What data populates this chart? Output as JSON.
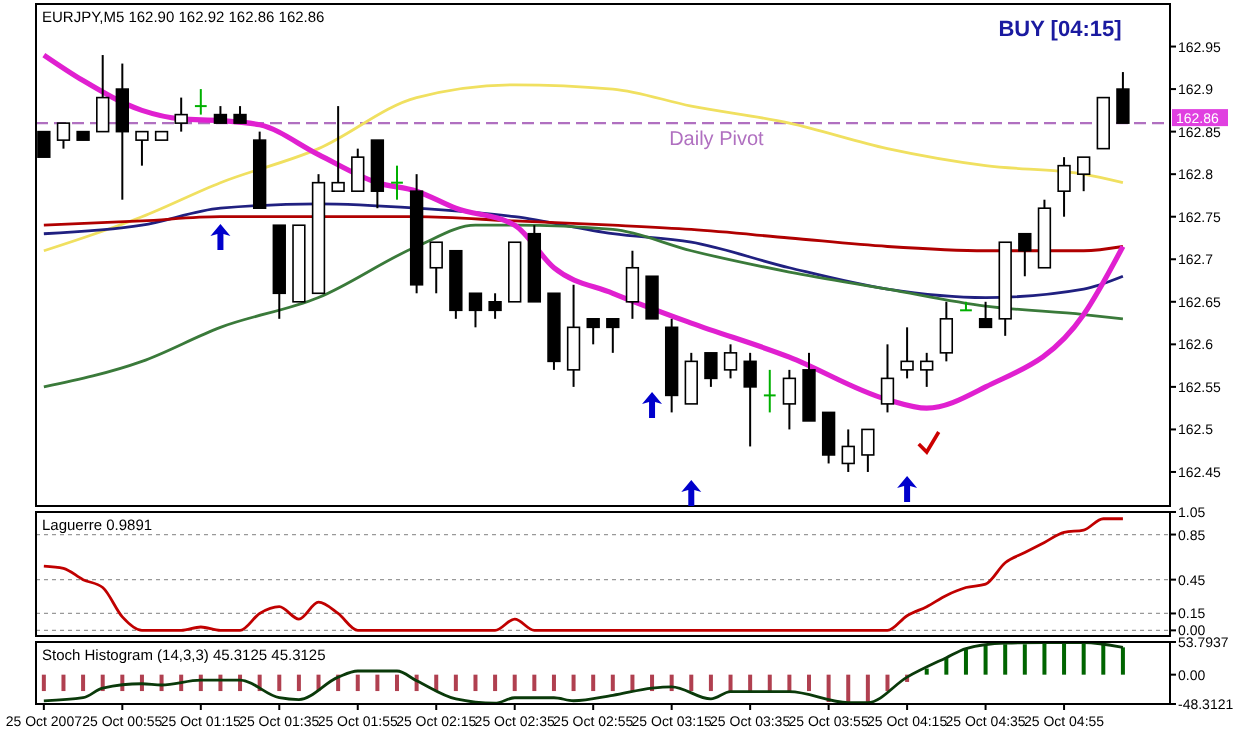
{
  "chart_data": [
    {
      "type": "candlestick",
      "title": "EURJPY,M5  162.90 162.92 162.86 162.86",
      "x": [
        "2007-10-25T00:35",
        "2007-10-25T00:40",
        "2007-10-25T00:45",
        "2007-10-25T00:50",
        "2007-10-25T00:55",
        "2007-10-25T01:00",
        "2007-10-25T01:05",
        "2007-10-25T01:10",
        "2007-10-25T01:15",
        "2007-10-25T01:20",
        "2007-10-25T01:25",
        "2007-10-25T01:30",
        "2007-10-25T01:35",
        "2007-10-25T01:40",
        "2007-10-25T01:45",
        "2007-10-25T01:50",
        "2007-10-25T01:55",
        "2007-10-25T02:00",
        "2007-10-25T02:05",
        "2007-10-25T02:10",
        "2007-10-25T02:15",
        "2007-10-25T02:20",
        "2007-10-25T02:25",
        "2007-10-25T02:30",
        "2007-10-25T02:35",
        "2007-10-25T02:40",
        "2007-10-25T02:45",
        "2007-10-25T02:50",
        "2007-10-25T02:55",
        "2007-10-25T03:00",
        "2007-10-25T03:05",
        "2007-10-25T03:10",
        "2007-10-25T03:15",
        "2007-10-25T03:20",
        "2007-10-25T03:25",
        "2007-10-25T03:30",
        "2007-10-25T03:35",
        "2007-10-25T03:40",
        "2007-10-25T03:45",
        "2007-10-25T03:50",
        "2007-10-25T03:55",
        "2007-10-25T04:00",
        "2007-10-25T04:05",
        "2007-10-25T04:10",
        "2007-10-25T04:15",
        "2007-10-25T04:20",
        "2007-10-25T04:25",
        "2007-10-25T04:30",
        "2007-10-25T04:35",
        "2007-10-25T04:40",
        "2007-10-25T04:45",
        "2007-10-25T04:50",
        "2007-10-25T04:55",
        "2007-10-25T05:00",
        "2007-10-25T05:05",
        "2007-10-25T05:10"
      ],
      "ohlc": [
        [
          162.85,
          162.85,
          162.82,
          162.82
        ],
        [
          162.84,
          162.86,
          162.83,
          162.86
        ],
        [
          162.85,
          162.85,
          162.84,
          162.84
        ],
        [
          162.85,
          162.94,
          162.85,
          162.89
        ],
        [
          162.9,
          162.93,
          162.77,
          162.85
        ],
        [
          162.84,
          162.85,
          162.81,
          162.85
        ],
        [
          162.84,
          162.85,
          162.84,
          162.85
        ],
        [
          162.86,
          162.89,
          162.85,
          162.87
        ],
        [
          162.88,
          162.9,
          162.87,
          162.88
        ],
        [
          162.87,
          162.88,
          162.86,
          162.86
        ],
        [
          162.87,
          162.88,
          162.86,
          162.86
        ],
        [
          162.84,
          162.85,
          162.76,
          162.76
        ],
        [
          162.74,
          162.74,
          162.63,
          162.66
        ],
        [
          162.65,
          162.74,
          162.65,
          162.74
        ],
        [
          162.66,
          162.8,
          162.66,
          162.79
        ],
        [
          162.78,
          162.88,
          162.78,
          162.79
        ],
        [
          162.78,
          162.83,
          162.78,
          162.82
        ],
        [
          162.84,
          162.84,
          162.76,
          162.78
        ],
        [
          162.79,
          162.81,
          162.77,
          162.79
        ],
        [
          162.78,
          162.8,
          162.66,
          162.67
        ],
        [
          162.69,
          162.72,
          162.66,
          162.72
        ],
        [
          162.71,
          162.71,
          162.63,
          162.64
        ],
        [
          162.66,
          162.66,
          162.62,
          162.64
        ],
        [
          162.65,
          162.66,
          162.63,
          162.64
        ],
        [
          162.65,
          162.72,
          162.65,
          162.72
        ],
        [
          162.73,
          162.74,
          162.65,
          162.65
        ],
        [
          162.66,
          162.66,
          162.57,
          162.58
        ],
        [
          162.57,
          162.67,
          162.55,
          162.62
        ],
        [
          162.63,
          162.63,
          162.6,
          162.62
        ],
        [
          162.63,
          162.63,
          162.59,
          162.62
        ],
        [
          162.65,
          162.71,
          162.63,
          162.69
        ],
        [
          162.68,
          162.68,
          162.63,
          162.63
        ],
        [
          162.62,
          162.63,
          162.52,
          162.54
        ],
        [
          162.53,
          162.59,
          162.53,
          162.58
        ],
        [
          162.59,
          162.59,
          162.55,
          162.56
        ],
        [
          162.57,
          162.6,
          162.56,
          162.59
        ],
        [
          162.58,
          162.59,
          162.48,
          162.55
        ],
        [
          162.54,
          162.57,
          162.52,
          162.54
        ],
        [
          162.53,
          162.57,
          162.5,
          162.56
        ],
        [
          162.57,
          162.59,
          162.51,
          162.51
        ],
        [
          162.52,
          162.52,
          162.46,
          162.47
        ],
        [
          162.46,
          162.5,
          162.45,
          162.48
        ],
        [
          162.47,
          162.5,
          162.45,
          162.5
        ],
        [
          162.53,
          162.6,
          162.52,
          162.56
        ],
        [
          162.57,
          162.62,
          162.56,
          162.58
        ],
        [
          162.57,
          162.59,
          162.55,
          162.58
        ],
        [
          162.59,
          162.65,
          162.58,
          162.63
        ],
        [
          162.64,
          162.65,
          162.64,
          162.64
        ],
        [
          162.63,
          162.65,
          162.62,
          162.62
        ],
        [
          162.63,
          162.72,
          162.61,
          162.72
        ],
        [
          162.73,
          162.73,
          162.68,
          162.71
        ],
        [
          162.69,
          162.77,
          162.69,
          162.76
        ],
        [
          162.78,
          162.82,
          162.75,
          162.81
        ],
        [
          162.8,
          162.82,
          162.78,
          162.82
        ],
        [
          162.83,
          162.89,
          162.83,
          162.89
        ],
        [
          162.9,
          162.92,
          162.86,
          162.86
        ]
      ],
      "series": [
        {
          "type": "line",
          "color": "#f0e060",
          "x": [
            "2007-10-25T00:35",
            "2007-10-25T01:00",
            "2007-10-25T01:20",
            "2007-10-25T01:45",
            "2007-10-25T02:10",
            "2007-10-25T02:35",
            "2007-10-25T03:00",
            "2007-10-25T03:20",
            "2007-10-25T03:45",
            "2007-10-25T04:10",
            "2007-10-25T04:35",
            "2007-10-25T05:00",
            "2007-10-25T05:10"
          ],
          "values": [
            162.71,
            162.75,
            162.79,
            162.83,
            162.89,
            162.905,
            162.9,
            162.88,
            162.86,
            162.83,
            162.81,
            162.8,
            162.79
          ]
        },
        {
          "type": "line",
          "color": "#202080",
          "x": [
            "2007-10-25T00:35",
            "2007-10-25T01:00",
            "2007-10-25T01:20",
            "2007-10-25T01:45",
            "2007-10-25T02:10",
            "2007-10-25T02:35",
            "2007-10-25T03:00",
            "2007-10-25T03:20",
            "2007-10-25T03:45",
            "2007-10-25T04:10",
            "2007-10-25T04:35",
            "2007-10-25T05:00",
            "2007-10-25T05:10"
          ],
          "values": [
            162.73,
            162.74,
            162.76,
            162.765,
            162.76,
            162.75,
            162.73,
            162.72,
            162.69,
            162.665,
            162.655,
            162.665,
            162.68
          ]
        },
        {
          "type": "line",
          "color": "#b00000",
          "x": [
            "2007-10-25T00:35",
            "2007-10-25T01:00",
            "2007-10-25T01:20",
            "2007-10-25T01:45",
            "2007-10-25T02:10",
            "2007-10-25T02:35",
            "2007-10-25T03:00",
            "2007-10-25T03:20",
            "2007-10-25T03:45",
            "2007-10-25T04:10",
            "2007-10-25T04:35",
            "2007-10-25T05:00",
            "2007-10-25T05:10"
          ],
          "values": [
            162.74,
            162.745,
            162.75,
            162.75,
            162.75,
            162.745,
            162.74,
            162.735,
            162.725,
            162.715,
            162.71,
            162.71,
            162.715
          ]
        },
        {
          "type": "line",
          "color": "#3a7a3a",
          "x": [
            "2007-10-25T00:35",
            "2007-10-25T01:00",
            "2007-10-25T01:20",
            "2007-10-25T01:45",
            "2007-10-25T02:10",
            "2007-10-25T02:25",
            "2007-10-25T02:35",
            "2007-10-25T03:00",
            "2007-10-25T03:20",
            "2007-10-25T03:45",
            "2007-10-25T04:10",
            "2007-10-25T04:35",
            "2007-10-25T05:00",
            "2007-10-25T05:10"
          ],
          "values": [
            162.55,
            162.58,
            162.62,
            162.655,
            162.715,
            162.74,
            162.74,
            162.735,
            162.71,
            162.685,
            162.665,
            162.645,
            162.635,
            162.63
          ]
        },
        {
          "type": "line",
          "color": "#e020d0",
          "x": [
            "2007-10-25T00:35",
            "2007-10-25T00:45",
            "2007-10-25T01:00",
            "2007-10-25T01:10",
            "2007-10-25T01:20",
            "2007-10-25T01:30",
            "2007-10-25T01:45",
            "2007-10-25T02:00",
            "2007-10-25T02:10",
            "2007-10-25T02:20",
            "2007-10-25T02:35",
            "2007-10-25T02:45",
            "2007-10-25T03:00",
            "2007-10-25T03:20",
            "2007-10-25T03:45",
            "2007-10-25T04:10",
            "2007-10-25T04:20",
            "2007-10-25T04:35",
            "2007-10-25T05:00",
            "2007-10-25T05:10"
          ],
          "values": [
            162.94,
            162.91,
            162.875,
            162.865,
            162.863,
            162.858,
            162.823,
            162.79,
            162.78,
            162.76,
            162.74,
            162.69,
            162.66,
            162.625,
            162.585,
            162.535,
            162.525,
            162.55,
            162.635,
            162.715
          ]
        }
      ],
      "xlim": [
        "2007-10-25T00:33",
        "2007-10-25T05:22"
      ],
      "ylim": [
        162.41,
        163.0
      ],
      "yticks": [
        162.45,
        162.5,
        162.55,
        162.6,
        162.65,
        162.7,
        162.75,
        162.8,
        162.85,
        162.9,
        162.95
      ],
      "ref_lines": [
        {
          "axis": "y",
          "value": 162.86,
          "label": "Daily Pivot",
          "color": "#b070c0",
          "line_style": "dashed"
        }
      ],
      "annotations": [
        "BUY [04:15]",
        "162.86"
      ],
      "tick_labels": "y"
    },
    {
      "type": "line",
      "title": "Laguerre 0.9891",
      "color": "#c00000",
      "x": [
        "2007-10-25T00:35",
        "2007-10-25T00:40",
        "2007-10-25T00:45",
        "2007-10-25T00:50",
        "2007-10-25T00:55",
        "2007-10-25T01:00",
        "2007-10-25T01:05",
        "2007-10-25T01:10",
        "2007-10-25T01:15",
        "2007-10-25T01:20",
        "2007-10-25T01:25",
        "2007-10-25T01:30",
        "2007-10-25T01:35",
        "2007-10-25T01:40",
        "2007-10-25T01:45",
        "2007-10-25T01:50",
        "2007-10-25T01:55",
        "2007-10-25T02:00",
        "2007-10-25T02:05",
        "2007-10-25T02:10",
        "2007-10-25T02:15",
        "2007-10-25T02:20",
        "2007-10-25T02:25",
        "2007-10-25T02:30",
        "2007-10-25T02:35",
        "2007-10-25T02:40",
        "2007-10-25T02:45",
        "2007-10-25T02:50",
        "2007-10-25T02:55",
        "2007-10-25T03:00",
        "2007-10-25T03:05",
        "2007-10-25T03:10",
        "2007-10-25T03:15",
        "2007-10-25T03:20",
        "2007-10-25T03:25",
        "2007-10-25T03:30",
        "2007-10-25T03:35",
        "2007-10-25T03:40",
        "2007-10-25T03:45",
        "2007-10-25T03:50",
        "2007-10-25T03:55",
        "2007-10-25T04:00",
        "2007-10-25T04:05",
        "2007-10-25T04:10",
        "2007-10-25T04:15",
        "2007-10-25T04:20",
        "2007-10-25T04:25",
        "2007-10-25T04:30",
        "2007-10-25T04:35",
        "2007-10-25T04:40",
        "2007-10-25T04:45",
        "2007-10-25T04:50",
        "2007-10-25T04:55",
        "2007-10-25T05:00",
        "2007-10-25T05:05",
        "2007-10-25T05:10"
      ],
      "values": [
        0.57,
        0.55,
        0.45,
        0.38,
        0.12,
        0,
        0,
        0,
        0.03,
        0,
        0,
        0.15,
        0.21,
        0.1,
        0.25,
        0.15,
        0,
        0,
        0,
        0,
        0,
        0,
        0,
        0,
        0.1,
        0,
        0,
        0,
        0,
        0,
        0,
        0,
        0,
        0,
        0,
        0,
        0,
        0,
        0,
        0,
        0,
        0,
        0,
        0,
        0.13,
        0.21,
        0.31,
        0.38,
        0.41,
        0.6,
        0.69,
        0.78,
        0.87,
        0.89,
        0.99,
        0.99
      ],
      "xlim": [
        "2007-10-25T00:33",
        "2007-10-25T05:22"
      ],
      "ylim": [
        -0.05,
        1.05
      ],
      "yticks": [
        1.05,
        0.85,
        0.45,
        0.15,
        {
          "value": 0,
          "label": "0.00"
        }
      ],
      "grid": "y",
      "tick_labels": "y"
    },
    {
      "type": "bar",
      "title": "Stoch Histogram (14,3,3) 45.3125 45.3125",
      "x": [
        "2007-10-25T00:35",
        "2007-10-25T00:40",
        "2007-10-25T00:45",
        "2007-10-25T00:50",
        "2007-10-25T00:55",
        "2007-10-25T01:00",
        "2007-10-25T01:05",
        "2007-10-25T01:10",
        "2007-10-25T01:15",
        "2007-10-25T01:20",
        "2007-10-25T01:25",
        "2007-10-25T01:30",
        "2007-10-25T01:35",
        "2007-10-25T01:40",
        "2007-10-25T01:45",
        "2007-10-25T01:50",
        "2007-10-25T01:55",
        "2007-10-25T02:00",
        "2007-10-25T02:05",
        "2007-10-25T02:10",
        "2007-10-25T02:15",
        "2007-10-25T02:20",
        "2007-10-25T02:25",
        "2007-10-25T02:30",
        "2007-10-25T02:35",
        "2007-10-25T02:40",
        "2007-10-25T02:45",
        "2007-10-25T02:50",
        "2007-10-25T02:55",
        "2007-10-25T03:00",
        "2007-10-25T03:05",
        "2007-10-25T03:10",
        "2007-10-25T03:15",
        "2007-10-25T03:20",
        "2007-10-25T03:25",
        "2007-10-25T03:30",
        "2007-10-25T03:35",
        "2007-10-25T03:40",
        "2007-10-25T03:45",
        "2007-10-25T03:50",
        "2007-10-25T03:55",
        "2007-10-25T04:00",
        "2007-10-25T04:05",
        "2007-10-25T04:10",
        "2007-10-25T04:15",
        "2007-10-25T04:20",
        "2007-10-25T04:25",
        "2007-10-25T04:30",
        "2007-10-25T04:35",
        "2007-10-25T04:40",
        "2007-10-25T04:45",
        "2007-10-25T04:50",
        "2007-10-25T04:55",
        "2007-10-25T05:00",
        "2007-10-25T05:05",
        "2007-10-25T05:10"
      ],
      "series": [
        {
          "color": "#b04050",
          "values": [
            -27,
            -27,
            -27,
            -27,
            -27,
            -27,
            -27,
            -27,
            -27,
            -27,
            -27,
            -27,
            -27,
            -27,
            -27,
            -27,
            -27,
            -27,
            -27,
            -27,
            -27,
            -27,
            -27,
            -27,
            -27,
            -27,
            -27,
            -27,
            -27,
            -27,
            -27,
            -27,
            -27,
            -27,
            -27,
            -27,
            -27,
            -27,
            -27,
            -27,
            -45,
            -47,
            -47,
            -27,
            -12,
            null,
            null,
            null,
            null,
            null,
            null,
            null,
            null,
            null,
            null,
            null
          ]
        },
        {
          "color": "#006400",
          "values": [
            null,
            null,
            null,
            null,
            null,
            null,
            null,
            null,
            null,
            null,
            null,
            null,
            null,
            null,
            null,
            null,
            null,
            null,
            null,
            null,
            null,
            null,
            null,
            null,
            null,
            null,
            null,
            null,
            null,
            null,
            null,
            null,
            null,
            null,
            null,
            null,
            null,
            null,
            null,
            null,
            null,
            null,
            null,
            null,
            null,
            10,
            28,
            42,
            48,
            50,
            50,
            52,
            52,
            53,
            52,
            45
          ]
        },
        {
          "type": "line",
          "color": "#0a3a0a",
          "x": [
            "2007-10-25T00:35",
            "2007-10-25T00:45",
            "2007-10-25T00:50",
            "2007-10-25T01:00",
            "2007-10-25T01:05",
            "2007-10-25T01:15",
            "2007-10-25T01:25",
            "2007-10-25T01:35",
            "2007-10-25T01:40",
            "2007-10-25T01:50",
            "2007-10-25T01:55",
            "2007-10-25T02:05",
            "2007-10-25T02:10",
            "2007-10-25T02:20",
            "2007-10-25T02:30",
            "2007-10-25T02:35",
            "2007-10-25T02:45",
            "2007-10-25T02:50",
            "2007-10-25T03:00",
            "2007-10-25T03:10",
            "2007-10-25T03:15",
            "2007-10-25T03:25",
            "2007-10-25T03:30",
            "2007-10-25T03:45",
            "2007-10-25T04:00",
            "2007-10-25T04:05",
            "2007-10-25T04:15",
            "2007-10-25T04:25",
            "2007-10-25T04:30",
            "2007-10-25T04:40",
            "2007-10-25T04:50",
            "2007-10-25T05:00",
            "2007-10-25T05:10"
          ],
          "values": [
            -43,
            -38,
            -22,
            -15,
            -17,
            -9,
            -9,
            -38,
            -41,
            -4,
            6,
            6,
            -10,
            -40,
            -47,
            -38,
            -38,
            -43,
            -34,
            -22,
            -20,
            -40,
            -28,
            -28,
            -46,
            -46,
            -4,
            28,
            43,
            52,
            53,
            53,
            45
          ]
        }
      ],
      "xlim": [
        "2007-10-25T00:33",
        "2007-10-25T05:22"
      ],
      "xticks": [
        {
          "value": "2007-10-25T00:35",
          "label": "25 Oct 2007"
        },
        {
          "value": "2007-10-25T00:55",
          "label": "25 Oct 00:55"
        },
        {
          "value": "2007-10-25T01:15",
          "label": "25 Oct 01:15"
        },
        {
          "value": "2007-10-25T01:35",
          "label": "25 Oct 01:35"
        },
        {
          "value": "2007-10-25T01:55",
          "label": "25 Oct 01:55"
        },
        {
          "value": "2007-10-25T02:15",
          "label": "25 Oct 02:15"
        },
        {
          "value": "2007-10-25T02:35",
          "label": "25 Oct 02:35"
        },
        {
          "value": "2007-10-25T02:55",
          "label": "25 Oct 02:55"
        },
        {
          "value": "2007-10-25T03:15",
          "label": "25 Oct 03:15"
        },
        {
          "value": "2007-10-25T03:35",
          "label": "25 Oct 03:35"
        },
        {
          "value": "2007-10-25T03:55",
          "label": "25 Oct 03:55"
        },
        {
          "value": "2007-10-25T04:15",
          "label": "25 Oct 04:15"
        },
        {
          "value": "2007-10-25T04:35",
          "label": "25 Oct 04:35"
        },
        {
          "value": "2007-10-25T04:55",
          "label": "25 Oct 04:55"
        }
      ],
      "ylim": [
        -48.3121,
        53.7937
      ],
      "yticks": [
        53.7937,
        {
          "value": 0,
          "label": "0.00"
        },
        -48.3121
      ]
    }
  ]
}
